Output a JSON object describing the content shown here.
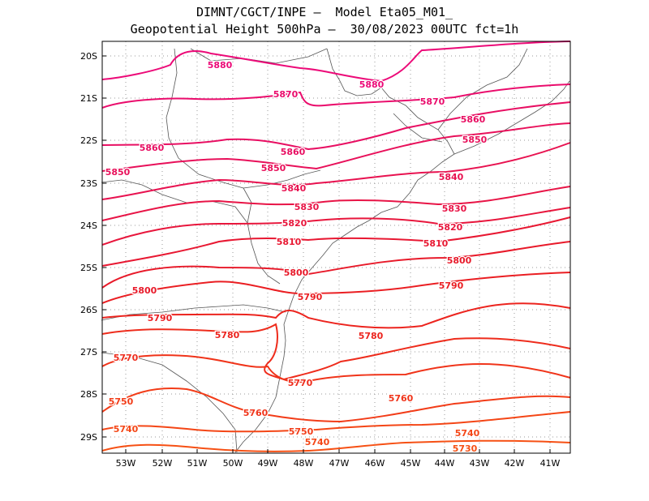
{
  "title": {
    "line1": "DIMNT/CGCT/INPE –  Model Eta05_M01_",
    "line2": "Geopotential Height 500hPa –  30/08/2023 00UTC fct=1h"
  },
  "axes": {
    "x_ticks": [
      "53W",
      "52W",
      "51W",
      "50W",
      "49W",
      "48W",
      "47W",
      "46W",
      "45W",
      "44W",
      "43W",
      "42W",
      "41W"
    ],
    "y_ticks": [
      "20S",
      "21S",
      "22S",
      "23S",
      "24S",
      "25S",
      "26S",
      "27S",
      "28S",
      "29S"
    ]
  },
  "colors": {
    "frame": "#000000",
    "grid": "#9a9a9a",
    "coast": "#555555"
  },
  "contours": [
    {
      "value": 5880,
      "color": "#ec0a78"
    },
    {
      "value": 5870,
      "color": "#ea0c6c"
    },
    {
      "value": 5860,
      "color": "#e80e62"
    },
    {
      "value": 5850,
      "color": "#e8105a"
    },
    {
      "value": 5840,
      "color": "#e81250"
    },
    {
      "value": 5830,
      "color": "#e81446"
    },
    {
      "value": 5820,
      "color": "#e8163c"
    },
    {
      "value": 5810,
      "color": "#e81832"
    },
    {
      "value": 5800,
      "color": "#e81a2a"
    },
    {
      "value": 5790,
      "color": "#ea1e22"
    },
    {
      "value": 5780,
      "color": "#ec241e"
    },
    {
      "value": 5770,
      "color": "#ee2c1c"
    },
    {
      "value": 5760,
      "color": "#f0341a"
    },
    {
      "value": 5750,
      "color": "#f23c18"
    },
    {
      "value": 5740,
      "color": "#f44616"
    },
    {
      "value": 5730,
      "color": "#f65014"
    }
  ],
  "labels": [
    {
      "text": "5880",
      "contour": 5880
    },
    {
      "text": "5880",
      "contour": 5880
    },
    {
      "text": "5870",
      "contour": 5870
    },
    {
      "text": "5870",
      "contour": 5870
    },
    {
      "text": "5860",
      "contour": 5860
    },
    {
      "text": "5860",
      "contour": 5860
    },
    {
      "text": "5860",
      "contour": 5860
    },
    {
      "text": "5850",
      "contour": 5850
    },
    {
      "text": "5850",
      "contour": 5850
    },
    {
      "text": "5850",
      "contour": 5850
    },
    {
      "text": "5840",
      "contour": 5840
    },
    {
      "text": "5840",
      "contour": 5840
    },
    {
      "text": "5830",
      "contour": 5830
    },
    {
      "text": "5830",
      "contour": 5830
    },
    {
      "text": "5820",
      "contour": 5820
    },
    {
      "text": "5820",
      "contour": 5820
    },
    {
      "text": "5810",
      "contour": 5810
    },
    {
      "text": "5810",
      "contour": 5810
    },
    {
      "text": "5800",
      "contour": 5800
    },
    {
      "text": "5800",
      "contour": 5800
    },
    {
      "text": "5800",
      "contour": 5800
    },
    {
      "text": "5790",
      "contour": 5790
    },
    {
      "text": "5790",
      "contour": 5790
    },
    {
      "text": "5790",
      "contour": 5790
    },
    {
      "text": "5780",
      "contour": 5780
    },
    {
      "text": "5780",
      "contour": 5780
    },
    {
      "text": "5770",
      "contour": 5770
    },
    {
      "text": "5770",
      "contour": 5770
    },
    {
      "text": "5760",
      "contour": 5760
    },
    {
      "text": "5760",
      "contour": 5760
    },
    {
      "text": "5750",
      "contour": 5750
    },
    {
      "text": "5750",
      "contour": 5750
    },
    {
      "text": "5740",
      "contour": 5740
    },
    {
      "text": "5740",
      "contour": 5740
    },
    {
      "text": "5740",
      "contour": 5740
    },
    {
      "text": "5730",
      "contour": 5730
    }
  ]
}
